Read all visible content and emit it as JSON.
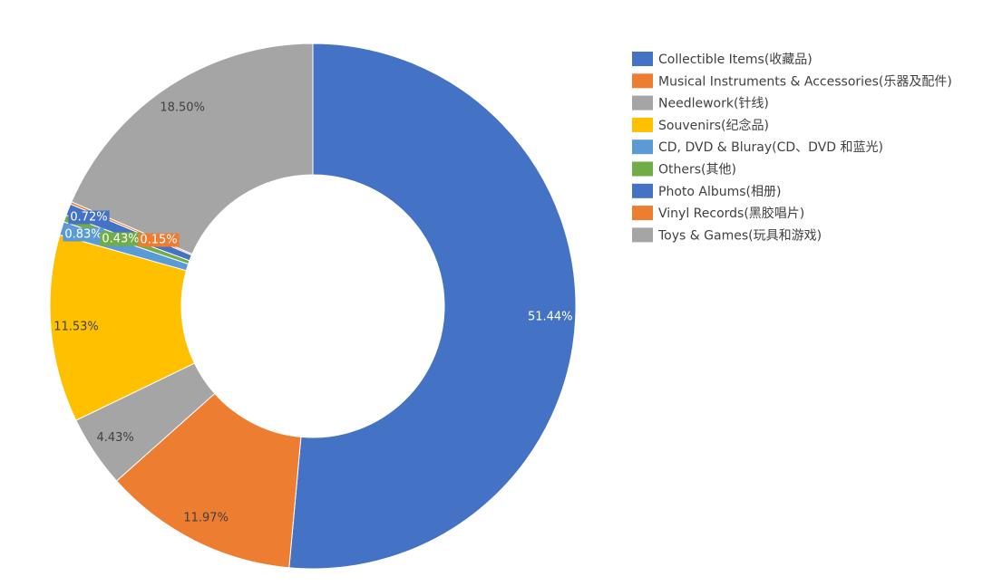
{
  "chart_data": {
    "type": "donut",
    "categories": [
      "Collectible Items(收藏品)",
      "Musical Instruments & Accessories(乐器及配件)",
      "Needlework(针线)",
      "Souvenirs(纪念品)",
      "CD, DVD & Bluray(CD、DVD 和蓝光)",
      "Others(其他)",
      "Photo Albums(相册)",
      "Vinyl Records(黑胶唱片)",
      "Toys & Games(玩具和游戏)"
    ],
    "values": [
      51.44,
      11.97,
      4.43,
      11.53,
      0.83,
      0.43,
      0.72,
      0.15,
      18.5
    ],
    "value_labels": [
      "51.44%",
      "11.97%",
      "4.43%",
      "11.53%",
      "0.83%",
      "0.43%",
      "0.72%",
      "0.15%",
      "18.50%"
    ],
    "colors": [
      "#4472c4",
      "#ed7d31",
      "#a5a5a5",
      "#ffc000",
      "#5b9bd5",
      "#70ad47",
      "#4472c4",
      "#ed7d31",
      "#a5a5a5"
    ],
    "legend": "right"
  }
}
